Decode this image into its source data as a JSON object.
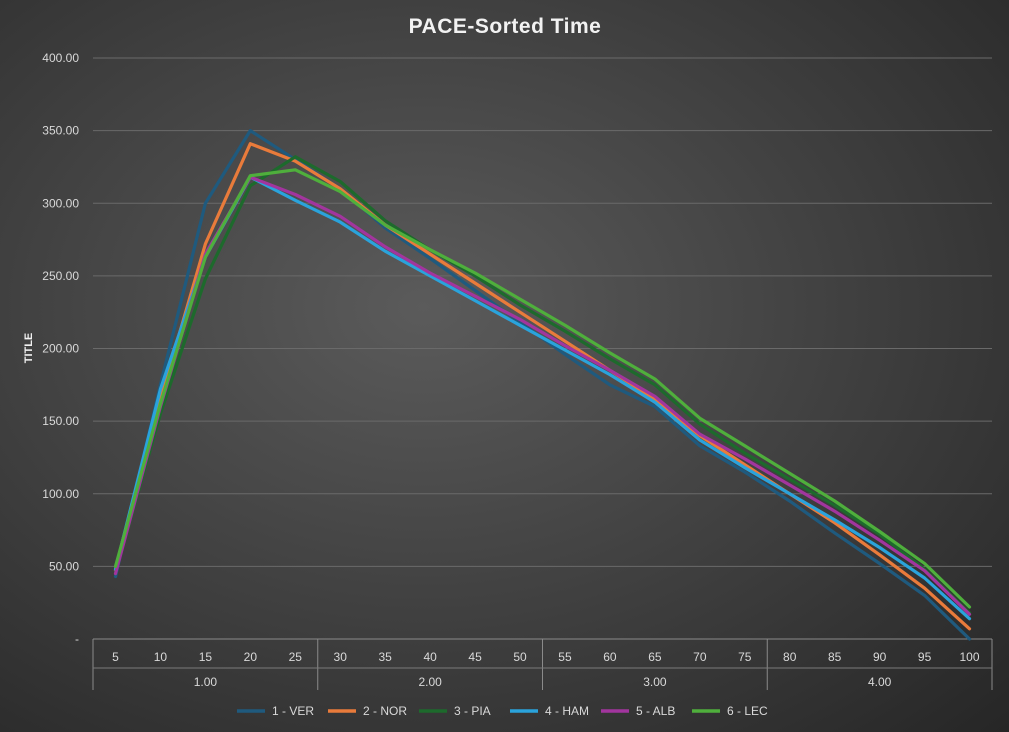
{
  "chart_data": {
    "type": "line",
    "title": "PACE-Sorted Time",
    "ylabel": "TITLE",
    "xlabel": "",
    "ylim": [
      0,
      400
    ],
    "yticks": [
      "-",
      "50.00",
      "100.00",
      "150.00",
      "200.00",
      "250.00",
      "300.00",
      "350.00",
      "400.00"
    ],
    "categories": [
      "5",
      "10",
      "15",
      "20",
      "25",
      "30",
      "35",
      "40",
      "45",
      "50",
      "55",
      "60",
      "65",
      "70",
      "75",
      "80",
      "85",
      "90",
      "95",
      "100"
    ],
    "groups": [
      {
        "label": "1.00",
        "size": 5
      },
      {
        "label": "2.00",
        "size": 5
      },
      {
        "label": "3.00",
        "size": 5
      },
      {
        "label": "4.00",
        "size": 5
      }
    ],
    "grid": true,
    "legend": "bottom",
    "series": [
      {
        "name": "1 - VER",
        "color": "#1f5a7e",
        "values": [
          43,
          175,
          300,
          350,
          330,
          310,
          283,
          262,
          240,
          218,
          196,
          175,
          160,
          133,
          115,
          95,
          73,
          52,
          30,
          0
        ]
      },
      {
        "name": "2 - NOR",
        "color": "#e97b3b",
        "values": [
          47,
          165,
          272,
          341,
          329,
          310,
          285,
          265,
          245,
          225,
          205,
          185,
          165,
          140,
          120,
          100,
          80,
          58,
          35,
          7
        ]
      },
      {
        "name": "3 - PIA",
        "color": "#1d6a2c",
        "values": [
          46,
          155,
          248,
          312,
          332,
          315,
          288,
          268,
          250,
          230,
          212,
          193,
          175,
          148,
          128,
          110,
          92,
          72,
          48,
          18
        ]
      },
      {
        "name": "4 - HAM",
        "color": "#2aa3dc",
        "values": [
          48,
          172,
          263,
          318,
          302,
          287,
          267,
          250,
          233,
          216,
          199,
          182,
          163,
          137,
          118,
          100,
          82,
          63,
          42,
          14
        ]
      },
      {
        "name": "5 - ALB",
        "color": "#a2359e",
        "values": [
          45,
          160,
          265,
          318,
          306,
          291,
          270,
          252,
          236,
          220,
          202,
          185,
          167,
          141,
          124,
          106,
          88,
          68,
          47,
          17
        ]
      },
      {
        "name": "6 - LEC",
        "color": "#4faf3c",
        "values": [
          50,
          162,
          263,
          319,
          323,
          308,
          285,
          268,
          252,
          234,
          216,
          197,
          179,
          152,
          133,
          114,
          95,
          74,
          52,
          22
        ]
      }
    ]
  }
}
